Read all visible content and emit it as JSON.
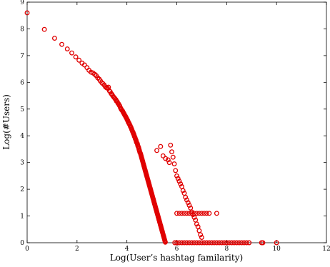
{
  "chart_data": {
    "type": "scatter",
    "title": "",
    "xlabel": "Log(User’s hashtag familarity)",
    "ylabel": "Log(#Users)",
    "xlim": [
      0,
      12
    ],
    "ylim": [
      0,
      9
    ],
    "xticks": [
      "0",
      "2",
      "4",
      "6",
      "8",
      "10",
      "12"
    ],
    "yticks": [
      "0",
      "1",
      "2",
      "3",
      "4",
      "5",
      "6",
      "7",
      "8",
      "9"
    ],
    "grid": false,
    "marker": "circle",
    "color": "#e00000",
    "series": [
      {
        "values": [
          [
            0.0,
            8.6
          ],
          [
            0.69,
            7.98
          ],
          [
            1.1,
            7.65
          ],
          [
            1.39,
            7.42
          ],
          [
            1.61,
            7.25
          ],
          [
            1.79,
            7.1
          ],
          [
            1.95,
            6.95
          ],
          [
            2.08,
            6.83
          ],
          [
            2.2,
            6.72
          ],
          [
            2.3,
            6.65
          ],
          [
            2.4,
            6.55
          ],
          [
            2.48,
            6.45
          ],
          [
            2.56,
            6.38
          ],
          [
            2.64,
            6.35
          ],
          [
            2.71,
            6.3
          ],
          [
            2.77,
            6.25
          ],
          [
            2.83,
            6.17
          ],
          [
            2.89,
            6.12
          ],
          [
            2.94,
            6.05
          ],
          [
            3.0,
            5.98
          ],
          [
            3.04,
            5.95
          ],
          [
            3.09,
            5.9
          ],
          [
            3.14,
            5.83
          ],
          [
            3.18,
            5.8
          ],
          [
            3.22,
            5.78
          ],
          [
            3.26,
            5.82
          ],
          [
            3.3,
            5.68
          ],
          [
            3.33,
            5.65
          ],
          [
            3.37,
            5.58
          ],
          [
            3.4,
            5.55
          ],
          [
            3.43,
            5.5
          ],
          [
            3.47,
            5.45
          ],
          [
            3.5,
            5.42
          ],
          [
            3.53,
            5.38
          ],
          [
            3.56,
            5.35
          ],
          [
            3.58,
            5.3
          ],
          [
            3.61,
            5.28
          ],
          [
            3.64,
            5.22
          ],
          [
            3.66,
            5.2
          ],
          [
            3.69,
            5.15
          ],
          [
            3.71,
            5.12
          ],
          [
            3.74,
            5.05
          ],
          [
            3.76,
            5.02
          ],
          [
            3.78,
            4.98
          ],
          [
            3.81,
            4.95
          ],
          [
            3.83,
            4.92
          ],
          [
            3.85,
            4.88
          ],
          [
            3.87,
            4.85
          ],
          [
            3.89,
            4.82
          ],
          [
            3.91,
            4.78
          ],
          [
            3.93,
            4.75
          ],
          [
            3.95,
            4.72
          ],
          [
            3.97,
            4.68
          ],
          [
            3.99,
            4.65
          ],
          [
            4.01,
            4.6
          ],
          [
            4.03,
            4.58
          ],
          [
            4.04,
            4.55
          ],
          [
            4.06,
            4.5
          ],
          [
            4.08,
            4.48
          ],
          [
            4.09,
            4.45
          ],
          [
            4.11,
            4.42
          ],
          [
            4.13,
            4.38
          ],
          [
            4.14,
            4.35
          ],
          [
            4.16,
            4.32
          ],
          [
            4.17,
            4.29
          ],
          [
            4.19,
            4.25
          ],
          [
            4.2,
            4.22
          ],
          [
            4.22,
            4.18
          ],
          [
            4.23,
            4.15
          ],
          [
            4.25,
            4.12
          ],
          [
            4.26,
            4.08
          ],
          [
            4.28,
            4.05
          ],
          [
            4.29,
            4.02
          ],
          [
            4.3,
            3.98
          ],
          [
            4.32,
            3.95
          ],
          [
            4.33,
            3.92
          ],
          [
            4.34,
            3.88
          ],
          [
            4.36,
            3.85
          ],
          [
            4.37,
            3.82
          ],
          [
            4.38,
            3.78
          ],
          [
            4.39,
            3.75
          ],
          [
            4.41,
            3.72
          ],
          [
            4.42,
            3.7
          ],
          [
            4.43,
            3.66
          ],
          [
            4.44,
            3.62
          ],
          [
            4.45,
            3.6
          ],
          [
            4.47,
            3.56
          ],
          [
            4.48,
            3.52
          ],
          [
            4.49,
            3.48
          ],
          [
            4.5,
            3.45
          ],
          [
            4.51,
            3.42
          ],
          [
            4.52,
            3.38
          ],
          [
            4.54,
            3.35
          ],
          [
            4.55,
            3.32
          ],
          [
            4.56,
            3.28
          ],
          [
            4.57,
            3.25
          ],
          [
            4.58,
            3.22
          ],
          [
            4.59,
            3.18
          ],
          [
            4.6,
            3.15
          ],
          [
            4.61,
            3.12
          ],
          [
            4.62,
            3.08
          ],
          [
            4.63,
            3.05
          ],
          [
            4.64,
            3.02
          ],
          [
            4.65,
            2.98
          ],
          [
            4.66,
            2.95
          ],
          [
            4.67,
            2.92
          ],
          [
            4.68,
            2.88
          ],
          [
            4.69,
            2.85
          ],
          [
            4.7,
            2.82
          ],
          [
            4.71,
            2.78
          ],
          [
            4.72,
            2.75
          ],
          [
            4.73,
            2.72
          ],
          [
            4.74,
            2.68
          ],
          [
            4.75,
            2.65
          ],
          [
            4.76,
            2.62
          ],
          [
            4.77,
            2.58
          ],
          [
            4.78,
            2.55
          ],
          [
            4.79,
            2.52
          ],
          [
            4.8,
            2.48
          ],
          [
            4.81,
            2.45
          ],
          [
            4.82,
            2.42
          ],
          [
            4.83,
            2.38
          ],
          [
            4.84,
            2.35
          ],
          [
            4.85,
            2.32
          ],
          [
            4.86,
            2.28
          ],
          [
            4.87,
            2.25
          ],
          [
            4.88,
            2.22
          ],
          [
            4.89,
            2.18
          ],
          [
            4.9,
            2.15
          ],
          [
            4.91,
            2.12
          ],
          [
            4.92,
            2.08
          ],
          [
            4.93,
            2.05
          ],
          [
            4.94,
            2.02
          ],
          [
            4.95,
            1.98
          ],
          [
            4.96,
            1.95
          ],
          [
            4.97,
            1.92
          ],
          [
            4.98,
            1.88
          ],
          [
            4.99,
            1.85
          ],
          [
            5.0,
            1.82
          ],
          [
            5.01,
            1.78
          ],
          [
            5.02,
            1.75
          ],
          [
            5.03,
            1.72
          ],
          [
            5.04,
            1.68
          ],
          [
            5.05,
            1.65
          ],
          [
            5.06,
            1.62
          ],
          [
            5.07,
            1.58
          ],
          [
            5.08,
            1.55
          ],
          [
            5.09,
            1.52
          ],
          [
            5.1,
            1.48
          ],
          [
            5.11,
            1.45
          ],
          [
            5.12,
            1.42
          ],
          [
            5.13,
            1.38
          ],
          [
            5.14,
            1.35
          ],
          [
            5.15,
            1.32
          ],
          [
            5.16,
            1.28
          ],
          [
            5.17,
            1.25
          ],
          [
            5.18,
            1.22
          ],
          [
            5.19,
            1.18
          ],
          [
            5.2,
            1.15
          ],
          [
            5.21,
            1.12
          ],
          [
            5.22,
            1.08
          ],
          [
            5.23,
            1.05
          ],
          [
            5.24,
            1.02
          ],
          [
            5.25,
            0.98
          ],
          [
            5.26,
            0.95
          ],
          [
            5.27,
            0.92
          ],
          [
            5.28,
            0.88
          ],
          [
            5.29,
            0.85
          ],
          [
            5.3,
            0.82
          ],
          [
            5.31,
            0.78
          ],
          [
            5.32,
            0.75
          ],
          [
            5.33,
            0.72
          ],
          [
            5.34,
            0.68
          ],
          [
            5.35,
            0.65
          ],
          [
            5.36,
            0.62
          ],
          [
            5.37,
            0.58
          ],
          [
            5.38,
            0.55
          ],
          [
            5.39,
            0.52
          ],
          [
            5.4,
            0.48
          ],
          [
            5.41,
            0.45
          ],
          [
            5.42,
            0.42
          ],
          [
            5.43,
            0.38
          ],
          [
            5.44,
            0.35
          ],
          [
            5.45,
            0.32
          ],
          [
            5.46,
            0.28
          ],
          [
            5.47,
            0.25
          ],
          [
            5.48,
            0.22
          ],
          [
            5.49,
            0.18
          ],
          [
            5.5,
            0.15
          ],
          [
            5.51,
            0.12
          ],
          [
            5.52,
            0.08
          ],
          [
            5.53,
            0.05
          ],
          [
            5.54,
            0.02
          ],
          [
            5.2,
            3.45
          ],
          [
            5.35,
            3.6
          ],
          [
            5.45,
            3.25
          ],
          [
            5.55,
            3.15
          ],
          [
            5.65,
            3.1
          ],
          [
            5.7,
            3.0
          ],
          [
            5.75,
            3.65
          ],
          [
            5.8,
            3.4
          ],
          [
            5.85,
            3.2
          ],
          [
            5.9,
            2.95
          ],
          [
            5.95,
            2.7
          ],
          [
            6.0,
            2.5
          ],
          [
            6.05,
            2.4
          ],
          [
            6.1,
            2.3
          ],
          [
            6.15,
            2.2
          ],
          [
            6.2,
            2.1
          ],
          [
            6.25,
            1.95
          ],
          [
            6.3,
            1.85
          ],
          [
            6.35,
            1.7
          ],
          [
            6.4,
            1.6
          ],
          [
            6.45,
            1.5
          ],
          [
            6.5,
            1.4
          ],
          [
            6.55,
            1.3
          ],
          [
            6.6,
            1.15
          ],
          [
            6.65,
            1.05
          ],
          [
            6.7,
            0.95
          ],
          [
            6.75,
            0.85
          ],
          [
            6.8,
            0.7
          ],
          [
            6.85,
            0.6
          ],
          [
            6.9,
            0.45
          ],
          [
            6.95,
            0.3
          ],
          [
            7.0,
            0.2
          ],
          [
            6.0,
            1.1
          ],
          [
            6.1,
            1.1
          ],
          [
            6.2,
            1.1
          ],
          [
            6.3,
            1.1
          ],
          [
            6.4,
            1.1
          ],
          [
            6.5,
            1.1
          ],
          [
            6.6,
            1.1
          ],
          [
            6.7,
            1.1
          ],
          [
            6.8,
            1.1
          ],
          [
            6.9,
            1.1
          ],
          [
            7.0,
            1.1
          ],
          [
            7.1,
            1.1
          ],
          [
            7.2,
            1.1
          ],
          [
            7.3,
            1.1
          ],
          [
            7.6,
            1.1
          ],
          [
            5.92,
            0.0
          ],
          [
            6.0,
            0.0
          ],
          [
            6.1,
            0.0
          ],
          [
            6.2,
            0.0
          ],
          [
            6.3,
            0.0
          ],
          [
            6.4,
            0.0
          ],
          [
            6.5,
            0.0
          ],
          [
            6.6,
            0.0
          ],
          [
            6.7,
            0.0
          ],
          [
            6.8,
            0.0
          ],
          [
            6.9,
            0.0
          ],
          [
            7.0,
            0.0
          ],
          [
            7.1,
            0.0
          ],
          [
            7.2,
            0.0
          ],
          [
            7.3,
            0.0
          ],
          [
            7.4,
            0.0
          ],
          [
            7.5,
            0.0
          ],
          [
            7.6,
            0.0
          ],
          [
            7.7,
            0.0
          ],
          [
            7.8,
            0.0
          ],
          [
            7.9,
            0.0
          ],
          [
            8.0,
            0.0
          ],
          [
            8.1,
            0.0
          ],
          [
            8.2,
            0.0
          ],
          [
            8.3,
            0.0
          ],
          [
            8.4,
            0.0
          ],
          [
            8.5,
            0.0
          ],
          [
            8.6,
            0.0
          ],
          [
            8.7,
            0.0
          ],
          [
            8.8,
            0.0
          ],
          [
            8.9,
            0.0
          ],
          [
            9.4,
            0.0
          ],
          [
            9.45,
            0.0
          ],
          [
            10.0,
            0.0
          ]
        ]
      }
    ]
  }
}
